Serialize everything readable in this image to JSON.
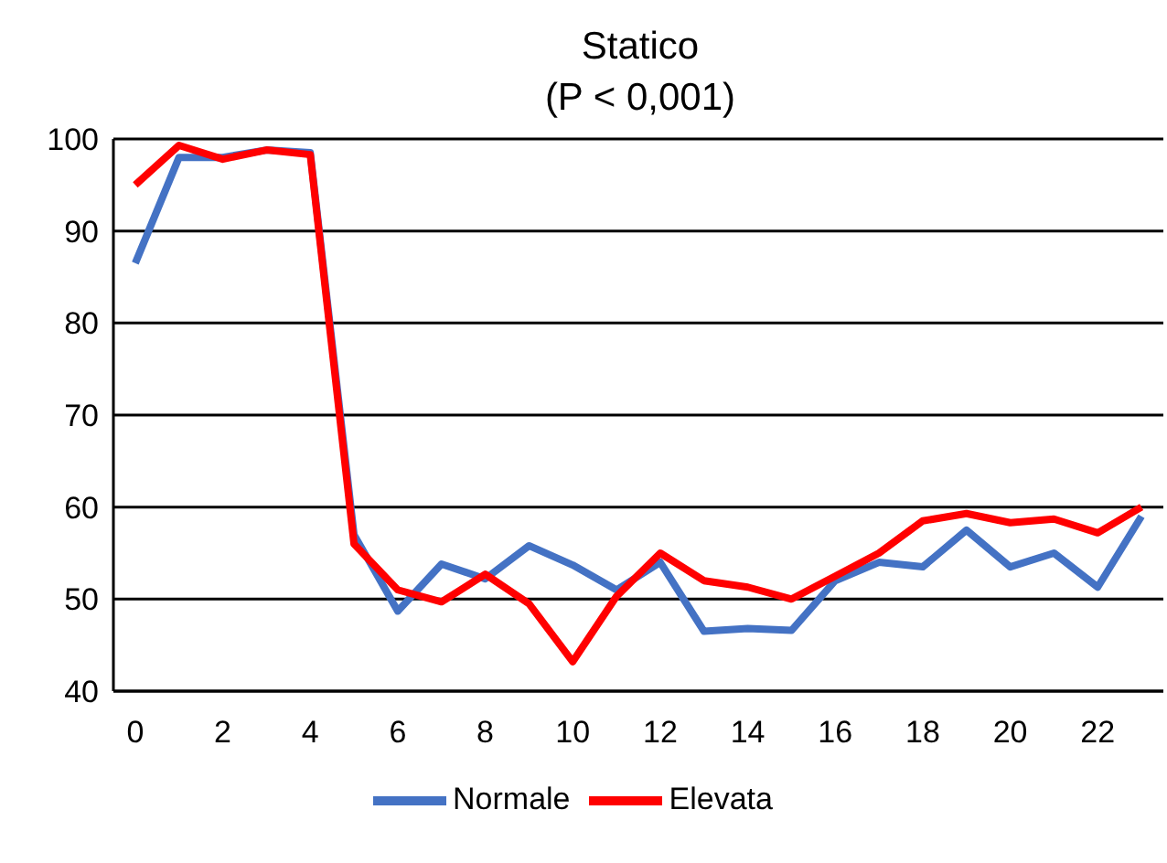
{
  "chart_data": {
    "type": "line",
    "title": "Statico",
    "subtitle": "(P < 0,001)",
    "x": [
      0,
      1,
      2,
      3,
      4,
      5,
      6,
      7,
      8,
      9,
      10,
      11,
      12,
      13,
      14,
      15,
      16,
      17,
      18,
      19,
      20,
      21,
      22,
      23
    ],
    "xlim": [
      -0.5,
      23.5
    ],
    "xticks": [
      0,
      2,
      4,
      6,
      8,
      10,
      12,
      14,
      16,
      18,
      20,
      22
    ],
    "ylim": [
      40,
      100
    ],
    "yticks": [
      40,
      50,
      60,
      70,
      80,
      90,
      100
    ],
    "grid": "y",
    "legend": "bottom",
    "marker": "none",
    "line_style": "solid",
    "series": [
      {
        "name": "Normale",
        "color": "#4472c4",
        "values": [
          86.5,
          98,
          98,
          98.8,
          98.5,
          57,
          48.7,
          53.8,
          52.2,
          55.8,
          53.7,
          51,
          54,
          46.5,
          46.8,
          46.6,
          52,
          54,
          53.5,
          57.5,
          53.5,
          55,
          51.3,
          59
        ]
      },
      {
        "name": "Elevata",
        "color": "#ff0000",
        "values": [
          95,
          99.3,
          97.8,
          98.8,
          98.3,
          56,
          51,
          49.7,
          52.7,
          49.5,
          43.2,
          50.3,
          55,
          52,
          51.3,
          50,
          52.5,
          55,
          58.5,
          59.3,
          58.3,
          58.7,
          57.2,
          60
        ]
      }
    ]
  }
}
